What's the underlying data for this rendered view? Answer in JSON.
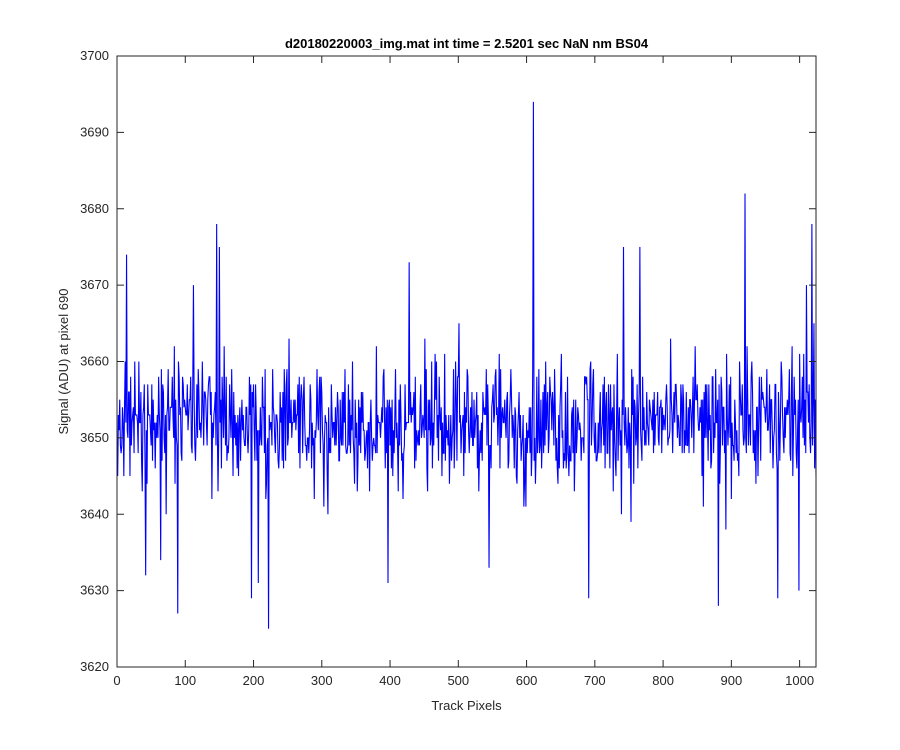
{
  "chart_data": {
    "type": "line",
    "title": "d20180220003_img.mat int time = 2.5201 sec  NaN nm BS04",
    "xlabel": "Track Pixels",
    "ylabel": "Signal (ADU) at pixel 690",
    "xlim": [
      0,
      1024
    ],
    "ylim": [
      3620,
      3700
    ],
    "xticks": [
      0,
      100,
      200,
      300,
      400,
      500,
      600,
      700,
      800,
      900,
      1000
    ],
    "yticks": [
      3620,
      3630,
      3640,
      3650,
      3660,
      3670,
      3680,
      3690,
      3700
    ],
    "grid": false,
    "box": true,
    "series": [
      {
        "color": "#0000ff",
        "noise_mean": 3652,
        "noise_band": [
          3640,
          3664
        ],
        "x_range": [
          1,
          1024
        ],
        "notable_points": [
          {
            "x": 1,
            "y": 3645
          },
          {
            "x": 14,
            "y": 3674
          },
          {
            "x": 42,
            "y": 3632
          },
          {
            "x": 64,
            "y": 3634
          },
          {
            "x": 89,
            "y": 3627
          },
          {
            "x": 112,
            "y": 3670
          },
          {
            "x": 146,
            "y": 3678
          },
          {
            "x": 150,
            "y": 3675
          },
          {
            "x": 197,
            "y": 3629
          },
          {
            "x": 207,
            "y": 3631
          },
          {
            "x": 222,
            "y": 3625
          },
          {
            "x": 397,
            "y": 3631
          },
          {
            "x": 428,
            "y": 3673
          },
          {
            "x": 545,
            "y": 3633
          },
          {
            "x": 610,
            "y": 3694
          },
          {
            "x": 691,
            "y": 3629
          },
          {
            "x": 742,
            "y": 3675
          },
          {
            "x": 766,
            "y": 3675
          },
          {
            "x": 881,
            "y": 3628
          },
          {
            "x": 920,
            "y": 3682
          },
          {
            "x": 968,
            "y": 3629
          },
          {
            "x": 999,
            "y": 3630
          },
          {
            "x": 1010,
            "y": 3670
          },
          {
            "x": 1018,
            "y": 3678
          },
          {
            "x": 1024,
            "y": 3645
          }
        ]
      }
    ]
  }
}
